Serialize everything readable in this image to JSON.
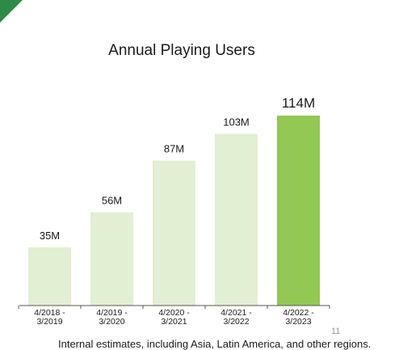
{
  "title": "Annual Playing Users",
  "chart_data": {
    "type": "bar",
    "title": "Annual Playing Users",
    "categories": [
      [
        "4/2018 -",
        "3/2019"
      ],
      [
        "4/2019 -",
        "3/2020"
      ],
      [
        "4/2020 -",
        "3/2021"
      ],
      [
        "4/2021 -",
        "3/2022"
      ],
      [
        "4/2022 -",
        "3/2023"
      ]
    ],
    "values": [
      35,
      56,
      87,
      103,
      114
    ],
    "data_labels": [
      "35M",
      "56M",
      "87M",
      "103M",
      "114M"
    ],
    "highlight_index": 4,
    "colors": {
      "bar": "#e2efd2",
      "highlight": "#92c853",
      "axis": "#555555"
    },
    "xlabel": "",
    "ylabel": "",
    "ylim": [
      0,
      120
    ],
    "grid": false,
    "legend": "none"
  },
  "page_number": "11",
  "footnote": "Internal estimates, including Asia, Latin America, and other regions."
}
